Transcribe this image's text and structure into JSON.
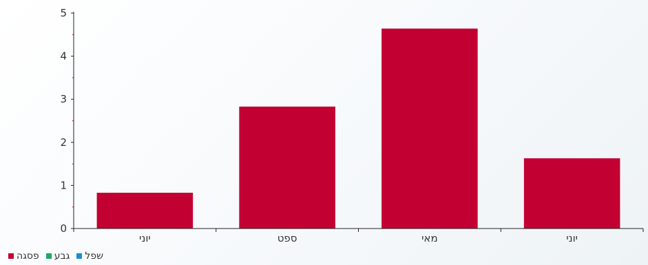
{
  "chart_data": {
    "type": "bar",
    "categories": [
      "יוני",
      "ספט",
      "מאי",
      "יוני"
    ],
    "series": [
      {
        "name": "פסגה",
        "values": [
          0.83,
          2.83,
          4.64,
          1.63
        ],
        "color": "#c30032"
      }
    ],
    "ylim": [
      0,
      5
    ],
    "yticks": [
      0,
      1,
      2,
      3,
      4,
      5
    ],
    "grid": false,
    "legend_position": "bottom-left"
  },
  "legend": [
    {
      "label": "פסגה",
      "color": "#c30032"
    },
    {
      "label": "גבע",
      "color": "#1fa866"
    },
    {
      "label": "שפל",
      "color": "#1a8fd0"
    }
  ]
}
